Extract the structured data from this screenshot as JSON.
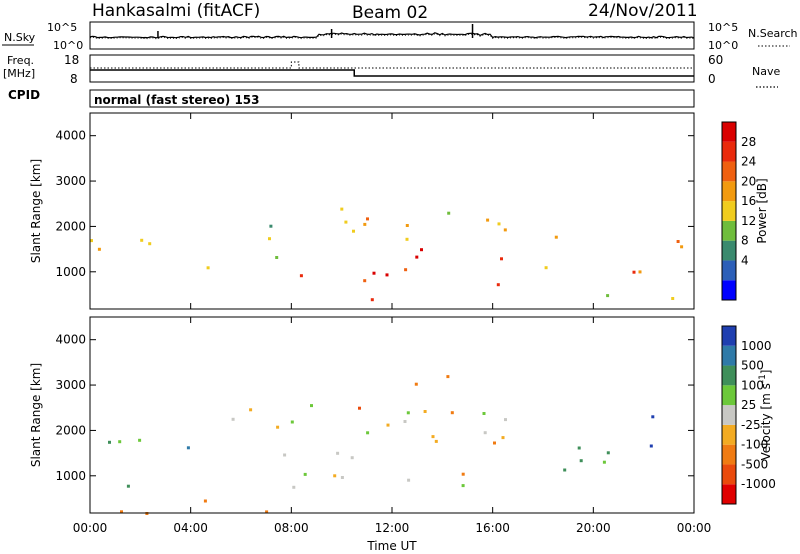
{
  "header": {
    "station": "Hankasalmi (fitACF)",
    "beam": "Beam 02",
    "date": "24/Nov/2011"
  },
  "top_panels": {
    "nsky_label": "N.Sky",
    "nsky_ticks": [
      "10^5",
      "10^0"
    ],
    "nsearch_label": "N.Search",
    "nsearch_ticks": [
      "10^5",
      "10^0"
    ],
    "freq_label_1": "Freq.",
    "freq_label_2": "[MHz]",
    "freq_ticks": [
      "18",
      "8"
    ],
    "nave_label": "Nave",
    "nave_ticks": [
      "60",
      "0"
    ],
    "cpid_label": "CPID",
    "cpid_text": "normal (fast stereo) 153"
  },
  "x_axis": {
    "ticks": [
      "00:00",
      "04:00",
      "08:00",
      "12:00",
      "16:00",
      "20:00",
      "00:00"
    ],
    "label": "Time UT"
  },
  "y_axis": {
    "label": "Slant Range [km]",
    "ticks": [
      "4000",
      "3000",
      "2000",
      "1000"
    ]
  },
  "power_colorbar": {
    "label": "Power [dB]",
    "ticks": [
      "28",
      "24",
      "20",
      "16",
      "12",
      "8",
      "4"
    ],
    "colors": [
      "#0000ff",
      "#2c5fb8",
      "#3a8a6e",
      "#6fbd3c",
      "#f0cc1e",
      "#f29a0f",
      "#ef6010",
      "#e92a0c",
      "#d90000"
    ]
  },
  "velocity_colorbar": {
    "label": "Velocity [m s",
    "label_sup": "-1",
    "label_end": "]",
    "ticks": [
      "1000",
      "500",
      "100",
      "25",
      "-25",
      "-100",
      "-500",
      "-1000"
    ],
    "colors": [
      "#1f3fb0",
      "#2f7aa8",
      "#3f8f5a",
      "#6cc83a",
      "#c8c8c4",
      "#f3ab22",
      "#f07b12",
      "#ea4a0c",
      "#e00000"
    ]
  },
  "chart_data": [
    {
      "type": "heatmap",
      "title": "",
      "xlabel": "",
      "ylabel": "Slant Range [km]",
      "xlim": [
        0,
        24
      ],
      "ylim": [
        180,
        4500
      ],
      "colorbar": "Power [dB]",
      "regions": [
        {
          "t": [
            0,
            1.5
          ],
          "r": [
            800,
            1800
          ],
          "power": 20
        },
        {
          "t": [
            1.5,
            3.0
          ],
          "r": [
            900,
            2000
          ],
          "power": 14
        },
        {
          "t": [
            3.0,
            5.0
          ],
          "r": [
            1000,
            1500
          ],
          "power": 18
        },
        {
          "t": [
            5.5,
            7.8
          ],
          "r": [
            1200,
            2400
          ],
          "power": 12
        },
        {
          "t": [
            7.8,
            17.0
          ],
          "r": [
            700,
            1600
          ],
          "power": 28
        },
        {
          "t": [
            7.8,
            17.0
          ],
          "r": [
            1600,
            2500
          ],
          "power": 18
        },
        {
          "t": [
            10.0,
            13.5
          ],
          "r": [
            300,
            600
          ],
          "power": 26
        },
        {
          "t": [
            14.0,
            16.5
          ],
          "r": [
            2000,
            2800
          ],
          "power": 14
        },
        {
          "t": [
            18.0,
            24.0
          ],
          "r": [
            900,
            1800
          ],
          "power": 22
        },
        {
          "t": [
            20.5,
            24.0
          ],
          "r": [
            200,
            700
          ],
          "power": 16
        }
      ]
    },
    {
      "type": "heatmap",
      "title": "",
      "xlabel": "Time UT",
      "ylabel": "Slant Range [km]",
      "xlim": [
        0,
        24
      ],
      "ylim": [
        180,
        4500
      ],
      "colorbar": "Velocity [m s-1]",
      "regions": [
        {
          "t": [
            0,
            3.0
          ],
          "r": [
            800,
            1900
          ],
          "velocity": 100
        },
        {
          "t": [
            2.5,
            4.0
          ],
          "r": [
            1500,
            2300
          ],
          "velocity": 500
        },
        {
          "t": [
            5.0,
            17.0
          ],
          "r": [
            1200,
            2600
          ],
          "velocity": 0
        },
        {
          "t": [
            7.8,
            17.0
          ],
          "r": [
            600,
            1200
          ],
          "velocity": 0
        },
        {
          "t": [
            10.5,
            14.5
          ],
          "r": [
            2400,
            3300
          ],
          "velocity": -500
        },
        {
          "t": [
            14.5,
            17.0
          ],
          "r": [
            1000,
            1800
          ],
          "velocity": -100
        },
        {
          "t": [
            18.0,
            24.0
          ],
          "r": [
            1000,
            1800
          ],
          "velocity": 100
        },
        {
          "t": [
            22.0,
            24.0
          ],
          "r": [
            1500,
            2400
          ],
          "velocity": 1000
        },
        {
          "t": [
            0,
            7.0
          ],
          "r": [
            200,
            700
          ],
          "velocity": -100
        }
      ]
    }
  ]
}
